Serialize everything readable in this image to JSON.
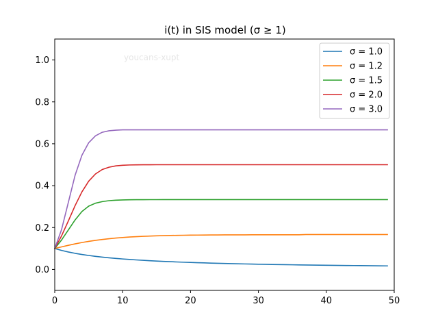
{
  "chart_data": {
    "type": "line",
    "title": "i(t) in SIS model (σ ≥ 1)",
    "watermark": "youcans-xupt",
    "xlabel": "",
    "ylabel": "",
    "xlim": [
      0,
      50
    ],
    "ylim": [
      -0.1,
      1.1
    ],
    "xticks": [
      0,
      10,
      20,
      30,
      40,
      50
    ],
    "yticks": [
      0.0,
      0.2,
      0.4,
      0.6,
      0.8,
      1.0
    ],
    "xtick_labels": [
      "0",
      "10",
      "20",
      "30",
      "40",
      "50"
    ],
    "ytick_labels": [
      "0.0",
      "0.2",
      "0.4",
      "0.6",
      "0.8",
      "1.0"
    ],
    "grid": false,
    "legend_position": "top-right",
    "x": [
      0,
      1,
      2,
      3,
      4,
      5,
      6,
      7,
      8,
      9,
      10,
      11,
      12,
      13,
      14,
      15,
      16,
      17,
      18,
      19,
      20,
      21,
      22,
      23,
      24,
      25,
      26,
      27,
      28,
      29,
      30,
      31,
      32,
      33,
      34,
      35,
      36,
      37,
      38,
      39,
      40,
      41,
      42,
      43,
      44,
      45,
      46,
      47,
      48,
      49
    ],
    "series": [
      {
        "name": "σ = 1.0",
        "color": "#1f77b4",
        "values": [
          0.1,
          0.0909,
          0.0833,
          0.0769,
          0.0714,
          0.0667,
          0.0625,
          0.0588,
          0.0556,
          0.0526,
          0.05,
          0.0476,
          0.0455,
          0.0435,
          0.0417,
          0.04,
          0.0385,
          0.037,
          0.0357,
          0.0345,
          0.0333,
          0.0323,
          0.0313,
          0.0303,
          0.0294,
          0.0286,
          0.0278,
          0.027,
          0.0263,
          0.0256,
          0.025,
          0.0244,
          0.0238,
          0.0233,
          0.0227,
          0.0222,
          0.0217,
          0.0213,
          0.0208,
          0.0204,
          0.02,
          0.0196,
          0.0192,
          0.0189,
          0.0185,
          0.0182,
          0.0179,
          0.0175,
          0.0172,
          0.0169
        ]
      },
      {
        "name": "σ = 1.2",
        "color": "#ff7f0e",
        "values": [
          0.1,
          0.1077,
          0.1152,
          0.1221,
          0.1284,
          0.134,
          0.1389,
          0.1431,
          0.1468,
          0.1499,
          0.1525,
          0.1547,
          0.1566,
          0.1581,
          0.1594,
          0.1605,
          0.1614,
          0.1621,
          0.1627,
          0.1632,
          0.1637,
          0.164,
          0.1643,
          0.1645,
          0.1647,
          0.1649,
          0.165,
          0.1651,
          0.1652,
          0.1653,
          0.1654,
          0.1654,
          0.1655,
          0.1655,
          0.1656,
          0.1656,
          0.1656,
          0.1666,
          0.1666,
          0.1666,
          0.1666,
          0.1666,
          0.1666,
          0.1666,
          0.1666,
          0.1666,
          0.1666,
          0.1666,
          0.1666,
          0.1666
        ]
      },
      {
        "name": "σ = 1.5",
        "color": "#2ca02c",
        "values": [
          0.1,
          0.1405,
          0.1883,
          0.2365,
          0.2764,
          0.3022,
          0.3163,
          0.3239,
          0.3283,
          0.3306,
          0.3318,
          0.3325,
          0.3329,
          0.3331,
          0.3332,
          0.3332,
          0.3333,
          0.3333,
          0.3333,
          0.3333,
          0.3333,
          0.3333,
          0.3333,
          0.3333,
          0.3333,
          0.3333,
          0.3333,
          0.3333,
          0.3333,
          0.3333,
          0.3333,
          0.3333,
          0.3333,
          0.3333,
          0.3333,
          0.3333,
          0.3333,
          0.3333,
          0.3333,
          0.3333,
          0.3333,
          0.3333,
          0.3333,
          0.3333,
          0.3333,
          0.3333,
          0.3333,
          0.3333,
          0.3333,
          0.3333
        ]
      },
      {
        "name": "σ = 2.0",
        "color": "#d62728",
        "values": [
          0.1,
          0.16,
          0.2312,
          0.3049,
          0.3702,
          0.4213,
          0.4559,
          0.4771,
          0.4882,
          0.4944,
          0.4974,
          0.4988,
          0.4995,
          0.4998,
          0.4999,
          0.5,
          0.5,
          0.5,
          0.5,
          0.5,
          0.5,
          0.5,
          0.5,
          0.5,
          0.5,
          0.5,
          0.5,
          0.5,
          0.5,
          0.5,
          0.5,
          0.5,
          0.5,
          0.5,
          0.5,
          0.5,
          0.5,
          0.5,
          0.5,
          0.5,
          0.5,
          0.5,
          0.5,
          0.5,
          0.5,
          0.5,
          0.5,
          0.5,
          0.5,
          0.5
        ]
      },
      {
        "name": "σ = 3.0",
        "color": "#9467bd",
        "values": [
          0.1,
          0.19,
          0.32,
          0.45,
          0.545,
          0.605,
          0.638,
          0.655,
          0.662,
          0.665,
          0.6664,
          0.6666,
          0.6666,
          0.6666,
          0.6666,
          0.6666,
          0.6666,
          0.6666,
          0.6666,
          0.6666,
          0.6666,
          0.6666,
          0.6666,
          0.6666,
          0.6666,
          0.6666,
          0.6666,
          0.6666,
          0.6666,
          0.6666,
          0.6666,
          0.6666,
          0.6666,
          0.6666,
          0.6666,
          0.6666,
          0.6666,
          0.6666,
          0.6666,
          0.6666,
          0.6666,
          0.6666,
          0.6666,
          0.6666,
          0.6666,
          0.6666,
          0.6666,
          0.6666,
          0.6666,
          0.6666
        ]
      }
    ]
  }
}
